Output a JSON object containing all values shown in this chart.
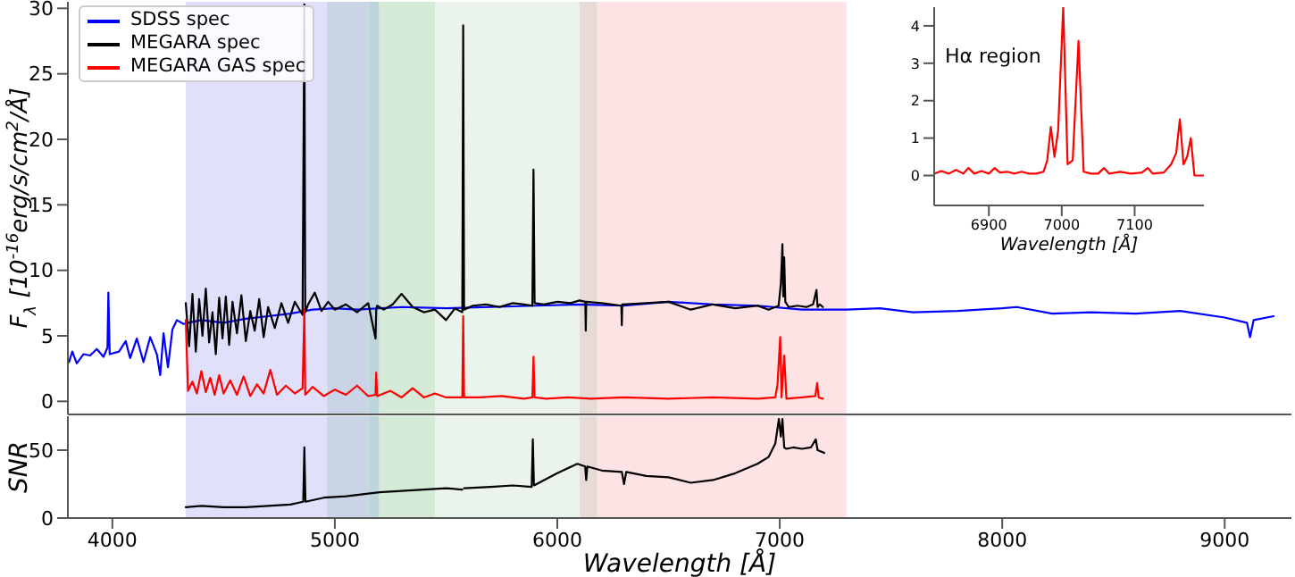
{
  "chart_data": [
    {
      "type": "line",
      "ylabel": "F$_{λ}$ [10$^{-16}$erg/s/cm$^{2}$/Å]",
      "xlim": [
        3800,
        9300
      ],
      "ylim": [
        -1,
        30.5
      ],
      "yticks": [
        0,
        5,
        10,
        15,
        20,
        25,
        30
      ],
      "tick_labels": "y",
      "legend": "top left",
      "marker": "none",
      "grid": false,
      "bands": [
        {
          "axis": "x",
          "from": 4330,
          "to": 4965,
          "color": "#e0e0fb"
        },
        {
          "axis": "x",
          "from": 4965,
          "to": 5150,
          "color": "#c9d4e6"
        },
        {
          "axis": "x",
          "from": 5150,
          "to": 5200,
          "color": "#bcd6dc"
        },
        {
          "axis": "x",
          "from": 5200,
          "to": 5450,
          "color": "#d5ead7"
        },
        {
          "axis": "x",
          "from": 5450,
          "to": 6100,
          "color": "#eaf4ec"
        },
        {
          "axis": "x",
          "from": 6100,
          "to": 6180,
          "color": "#e6dcd5"
        },
        {
          "axis": "x",
          "from": 6180,
          "to": 7300,
          "color": "#fde3e3"
        }
      ],
      "series": [
        {
          "name": "SDSS spec",
          "color": "#0000ff",
          "x": [
            3805,
            3820,
            3840,
            3870,
            3900,
            3930,
            3960,
            3978,
            3982,
            3988,
            4030,
            4060,
            4080,
            4110,
            4140,
            4170,
            4200,
            4215,
            4230,
            4250,
            4270,
            4290,
            4320,
            4340,
            4400,
            4500,
            4600,
            4700,
            4800,
            4900,
            5000,
            5100,
            5300,
            5500,
            5700,
            5900,
            6100,
            6300,
            6500,
            6700,
            6900,
            7100,
            7300,
            7450,
            7600,
            7800,
            8000,
            8065,
            8225,
            8400,
            8600,
            8800,
            9000,
            9100,
            9114,
            9130,
            9220
          ],
          "values": [
            3.0,
            3.8,
            2.9,
            3.6,
            3.5,
            4.0,
            3.4,
            4.1,
            8.3,
            3.6,
            3.8,
            4.6,
            3.3,
            4.8,
            3.0,
            4.9,
            3.6,
            2.0,
            5.2,
            2.6,
            5.5,
            6.2,
            5.9,
            6.0,
            6.2,
            6.0,
            6.3,
            6.5,
            6.7,
            7.0,
            7.1,
            7.0,
            7.2,
            7.1,
            7.2,
            7.3,
            7.4,
            7.3,
            7.6,
            7.4,
            7.3,
            7.0,
            7.0,
            7.1,
            6.8,
            6.9,
            7.1,
            7.2,
            6.7,
            6.8,
            6.7,
            6.9,
            6.4,
            6.0,
            4.9,
            6.2,
            6.5
          ]
        },
        {
          "name": "MEGARA spec",
          "color": "#000000",
          "x": [
            4330,
            4345,
            4360,
            4375,
            4390,
            4405,
            4420,
            4435,
            4450,
            4465,
            4480,
            4495,
            4510,
            4525,
            4540,
            4560,
            4580,
            4600,
            4620,
            4640,
            4660,
            4680,
            4700,
            4730,
            4760,
            4790,
            4820,
            4855,
            4863,
            4867,
            4880,
            4910,
            4940,
            4970,
            5000,
            5050,
            5100,
            5150,
            5183,
            5186,
            5190,
            5220,
            5260,
            5300,
            5350,
            5400,
            5450,
            5500,
            5540,
            5573,
            5577,
            5581,
            5620,
            5680,
            5740,
            5800,
            5850,
            5888,
            5893,
            5898,
            5940,
            6000,
            6060,
            6100,
            6126,
            6128,
            6130,
            6200,
            6288,
            6290,
            6292,
            6400,
            6500,
            6600,
            6700,
            6800,
            6900,
            6950,
            6995,
            7005,
            7012,
            7016,
            7020,
            7025,
            7040,
            7080,
            7120,
            7150,
            7165,
            7170,
            7180,
            7194
          ],
          "values": [
            7.5,
            4.2,
            8.2,
            3.8,
            7.8,
            5.0,
            8.6,
            4.5,
            6.8,
            3.6,
            7.9,
            4.8,
            8.0,
            4.3,
            7.6,
            5.2,
            8.1,
            4.6,
            6.9,
            5.4,
            7.8,
            4.9,
            7.2,
            5.6,
            7.5,
            6.0,
            7.6,
            6.6,
            30.3,
            6.8,
            7.4,
            8.3,
            6.9,
            7.6,
            7.0,
            7.4,
            6.8,
            7.5,
            4.8,
            7.0,
            7.3,
            7.0,
            7.4,
            8.2,
            7.2,
            6.8,
            7.0,
            6.2,
            7.1,
            6.8,
            28.7,
            7.0,
            7.3,
            7.4,
            7.2,
            7.5,
            7.4,
            7.3,
            17.7,
            7.5,
            7.4,
            7.6,
            7.5,
            7.7,
            7.6,
            5.4,
            7.6,
            7.5,
            7.3,
            5.8,
            7.4,
            7.5,
            7.6,
            7.0,
            7.4,
            7.1,
            7.3,
            7.0,
            7.3,
            9.0,
            12.0,
            8.0,
            11.0,
            7.6,
            7.2,
            7.3,
            7.2,
            7.4,
            8.5,
            7.2,
            7.4,
            7.2
          ]
        },
        {
          "name": "MEGARA GAS spec",
          "color": "#ff0000",
          "x": [
            4330,
            4340,
            4360,
            4380,
            4400,
            4420,
            4440,
            4460,
            4480,
            4500,
            4530,
            4560,
            4590,
            4620,
            4650,
            4680,
            4710,
            4740,
            4780,
            4820,
            4855,
            4863,
            4867,
            4900,
            4950,
            5000,
            5050,
            5100,
            5150,
            5183,
            5186,
            5190,
            5250,
            5300,
            5350,
            5400,
            5450,
            5500,
            5573,
            5577,
            5581,
            5650,
            5750,
            5850,
            5888,
            5893,
            5898,
            5950,
            6050,
            6150,
            6300,
            6500,
            6700,
            6900,
            6980,
            6990,
            7002,
            7008,
            7020,
            7030,
            7100,
            7160,
            7168,
            7175,
            7194
          ],
          "values": [
            6.2,
            0.8,
            1.5,
            0.6,
            2.3,
            0.7,
            1.8,
            0.5,
            2.0,
            0.6,
            1.6,
            0.5,
            1.9,
            0.4,
            1.3,
            0.6,
            2.4,
            0.5,
            1.2,
            0.6,
            1.0,
            7.0,
            0.5,
            1.1,
            0.4,
            0.9,
            0.5,
            1.2,
            0.4,
            0.5,
            2.2,
            0.4,
            0.8,
            0.3,
            1.0,
            0.3,
            0.6,
            0.3,
            0.3,
            6.5,
            0.3,
            0.3,
            0.4,
            0.2,
            0.3,
            3.4,
            0.3,
            0.2,
            0.3,
            0.2,
            0.3,
            0.2,
            0.3,
            0.2,
            0.3,
            1.3,
            4.9,
            0.3,
            3.5,
            0.2,
            0.3,
            0.4,
            1.4,
            0.3,
            0.2
          ]
        }
      ]
    },
    {
      "type": "line",
      "ylabel": "SNR",
      "xlabel": "Wavelength [Å]",
      "xlim": [
        3800,
        9300
      ],
      "ylim": [
        0,
        75
      ],
      "yticks": [
        0,
        50
      ],
      "xticks": [
        4000,
        5000,
        6000,
        7000,
        8000,
        9000
      ],
      "marker": "none",
      "grid": false,
      "bands": [
        {
          "axis": "x",
          "from": 4330,
          "to": 4965,
          "color": "#e0e0fb"
        },
        {
          "axis": "x",
          "from": 4965,
          "to": 5150,
          "color": "#c9d4e6"
        },
        {
          "axis": "x",
          "from": 5150,
          "to": 5200,
          "color": "#bcd6dc"
        },
        {
          "axis": "x",
          "from": 5200,
          "to": 5450,
          "color": "#d5ead7"
        },
        {
          "axis": "x",
          "from": 5450,
          "to": 6100,
          "color": "#eaf4ec"
        },
        {
          "axis": "x",
          "from": 6100,
          "to": 6180,
          "color": "#e6dcd5"
        },
        {
          "axis": "x",
          "from": 6180,
          "to": 7300,
          "color": "#fde3e3"
        }
      ],
      "series": [
        {
          "color": "#000000",
          "x": [
            4330,
            4400,
            4500,
            4600,
            4700,
            4800,
            4858,
            4863,
            4868,
            4950,
            5050,
            5150,
            5200,
            5300,
            5400,
            5500,
            5573,
            5577,
            5581,
            5700,
            5800,
            5885,
            5890,
            5895,
            6000,
            6090,
            6125,
            6130,
            6135,
            6200,
            6290,
            6300,
            6310,
            6400,
            6500,
            6600,
            6700,
            6800,
            6900,
            6950,
            6980,
            6996,
            7005,
            7012,
            7020,
            7030,
            7060,
            7100,
            7140,
            7162,
            7170,
            7200
          ],
          "values": [
            8,
            9,
            8,
            8,
            9,
            10,
            12,
            52,
            12,
            15,
            16,
            18,
            19,
            20,
            21,
            22,
            21,
            null,
            22,
            23,
            24,
            23,
            58,
            24,
            33,
            40,
            38,
            28,
            38,
            35,
            34,
            25,
            34,
            31,
            30,
            26,
            28,
            33,
            40,
            45,
            55,
            73,
            60,
            73,
            52,
            51,
            52,
            51,
            52,
            58,
            50,
            48
          ]
        }
      ]
    },
    {
      "type": "line",
      "xlabel": "Wavelength [Å]",
      "annotations": [
        "Hα region"
      ],
      "xlim": [
        6825,
        7195
      ],
      "ylim": [
        -0.8,
        4.5
      ],
      "yticks": [
        0,
        1,
        2,
        3,
        4
      ],
      "xticks": [
        6900,
        7000,
        7100
      ],
      "marker": "none",
      "grid": false,
      "series": [
        {
          "color": "#ff0000",
          "x": [
            6825,
            6835,
            6845,
            6855,
            6865,
            6872,
            6880,
            6890,
            6900,
            6908,
            6915,
            6925,
            6935,
            6945,
            6955,
            6965,
            6975,
            6980,
            6985,
            6990,
            6995,
            7002,
            7008,
            7015,
            7023,
            7030,
            7040,
            7050,
            7058,
            7065,
            7080,
            7095,
            7110,
            7118,
            7125,
            7140,
            7150,
            7157,
            7162,
            7167,
            7172,
            7177,
            7182,
            7195
          ],
          "values": [
            0.05,
            0.12,
            0.05,
            0.15,
            0.05,
            0.2,
            0.05,
            0.12,
            0.05,
            0.2,
            0.08,
            0.1,
            0.05,
            0.1,
            0.05,
            0.05,
            0.1,
            0.4,
            1.3,
            0.5,
            1.2,
            4.5,
            0.3,
            0.4,
            3.6,
            0.1,
            0.05,
            0.05,
            0.2,
            0.05,
            0.1,
            0.05,
            0.08,
            0.2,
            0.05,
            0.08,
            0.3,
            0.6,
            1.5,
            0.3,
            0.5,
            1.0,
            0.0,
            0.0
          ]
        }
      ]
    }
  ]
}
